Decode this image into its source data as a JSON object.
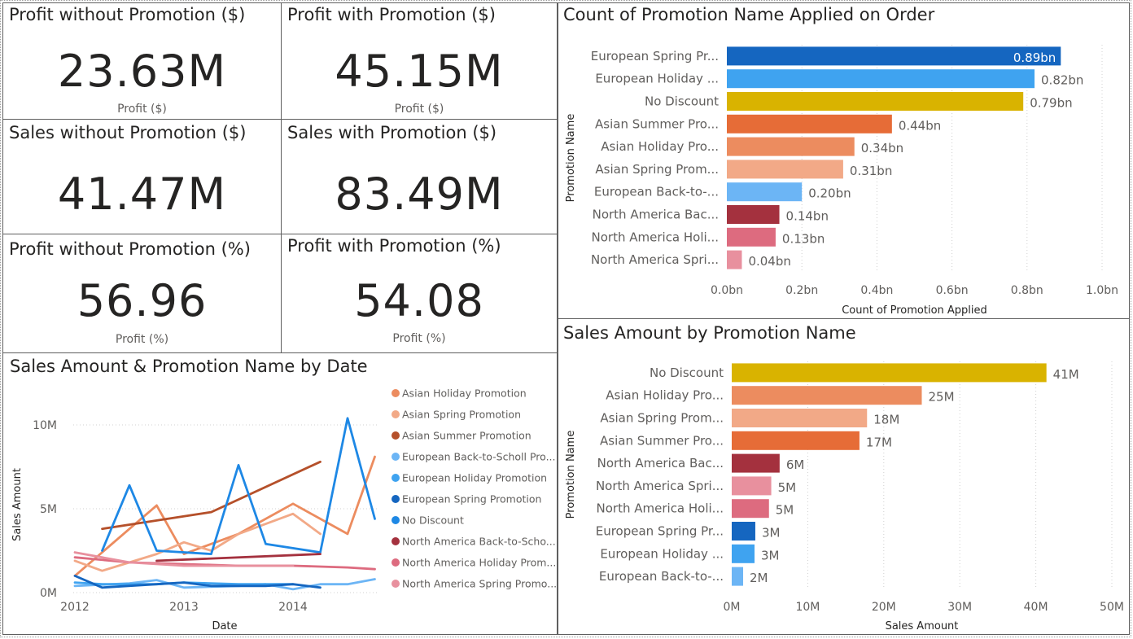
{
  "kpi_cards": [
    {
      "title": "Profit without Promotion ($)",
      "value": "23.63M",
      "category": "Profit ($)"
    },
    {
      "title": "Profit with Promotion ($)",
      "value": "45.15M",
      "category": "Profit ($)"
    },
    {
      "title": "Sales without Promotion ($)",
      "value": "41.47M",
      "category": ""
    },
    {
      "title": "Sales with Promotion ($)",
      "value": "83.49M",
      "category": ""
    },
    {
      "title": "Profit without Promotion (%)",
      "value": "56.96",
      "category": "Profit (%)"
    },
    {
      "title": "Profit with Promotion (%)",
      "value": "54.08",
      "category": "Profit (%)"
    }
  ],
  "colors": {
    "European Spring Promotion": "#1566c0",
    "European Holiday Promotion": "#3fa3f0",
    "No Discount": "#d9b300",
    "Asian Summer Promotion": "#e66c37",
    "Asian Holiday Promotion": "#ec8c5f",
    "Asian Spring Promotion": "#f2a987",
    "European Back-to-Scholl Promotion": "#6cb5f5",
    "North America Back-to-School Promotion": "#a4313e",
    "North America Holiday Promotion": "#dd6b7f",
    "North America Spring Promotion": "#e8909e",
    "line_no_discount": "#1e88e5",
    "line_asian_summer": "#b5502a"
  },
  "chart_data": [
    {
      "type": "bar",
      "orientation": "horizontal",
      "title": "Count of Promotion Name Applied on Order",
      "xlabel": "Count of Promotion Applied",
      "ylabel": "Promotion Name",
      "xlim": [
        0,
        1.0
      ],
      "x_ticks": [
        "0.0bn",
        "0.2bn",
        "0.4bn",
        "0.6bn",
        "0.8bn",
        "1.0bn"
      ],
      "categories": [
        "European Spring Pr...",
        "European Holiday ...",
        "No Discount",
        "Asian Summer Pro...",
        "Asian Holiday Pro...",
        "Asian Spring Prom...",
        "European Back-to-...",
        "North America Bac...",
        "North America Holi...",
        "North America Spri..."
      ],
      "series_keys": [
        "European Spring Promotion",
        "European Holiday Promotion",
        "No Discount",
        "Asian Summer Promotion",
        "Asian Holiday Promotion",
        "Asian Spring Promotion",
        "European Back-to-Scholl Promotion",
        "North America Back-to-School Promotion",
        "North America Holiday Promotion",
        "North America Spring Promotion"
      ],
      "values": [
        0.89,
        0.82,
        0.79,
        0.44,
        0.34,
        0.31,
        0.2,
        0.14,
        0.13,
        0.04
      ],
      "labels": [
        "0.89bn",
        "0.82bn",
        "0.79bn",
        "0.44bn",
        "0.34bn",
        "0.31bn",
        "0.20bn",
        "0.14bn",
        "0.13bn",
        "0.04bn"
      ],
      "grid": true
    },
    {
      "type": "bar",
      "orientation": "horizontal",
      "title": "Sales Amount by Promotion Name",
      "xlabel": "Sales Amount",
      "ylabel": "Promotion Name",
      "xlim": [
        0,
        50
      ],
      "x_ticks": [
        "0M",
        "10M",
        "20M",
        "30M",
        "40M",
        "50M"
      ],
      "categories": [
        "No Discount",
        "Asian Holiday Pro...",
        "Asian Spring Prom...",
        "Asian Summer Pro...",
        "North America Bac...",
        "North America Spri...",
        "North America Holi...",
        "European Spring Pr...",
        "European Holiday ...",
        "European Back-to-..."
      ],
      "series_keys": [
        "No Discount",
        "Asian Holiday Promotion",
        "Asian Spring Promotion",
        "Asian Summer Promotion",
        "North America Back-to-School Promotion",
        "North America Spring Promotion",
        "North America Holiday Promotion",
        "European Spring Promotion",
        "European Holiday Promotion",
        "European Back-to-Scholl Promotion"
      ],
      "values": [
        41.4,
        25.0,
        17.8,
        16.8,
        6.3,
        5.2,
        4.9,
        3.1,
        3.0,
        1.5
      ],
      "labels": [
        "41M",
        "25M",
        "18M",
        "17M",
        "6M",
        "5M",
        "5M",
        "3M",
        "3M",
        "2M"
      ],
      "grid": true
    },
    {
      "type": "line",
      "title": "Sales Amount & Promotion Name by Date",
      "xlabel": "Date",
      "ylabel": "Sales Amount",
      "x_ticks": [
        "2012",
        "2013",
        "2014"
      ],
      "xlim": [
        2012.0,
        2014.75
      ],
      "y_ticks": [
        "0M",
        "5M",
        "10M"
      ],
      "ylim": [
        0,
        12
      ],
      "legend_position": "right",
      "legend": [
        "Asian Holiday Promotion",
        "Asian Spring Promotion",
        "Asian Summer Promotion",
        "European Back-to-Scholl Pro...",
        "European Holiday Promotion",
        "European Spring Promotion",
        "No Discount",
        "North America Back-to-Scho...",
        "North America Holiday Prom...",
        "North America Spring Promo..."
      ],
      "series": [
        {
          "name": "Asian Holiday Promotion",
          "color": "#ec8c5f",
          "x": [
            2012.0,
            2012.75,
            2013.0,
            2013.5,
            2014.0,
            2014.5,
            2014.75
          ],
          "y": [
            1.0,
            5.2,
            2.3,
            3.5,
            5.3,
            3.5,
            8.1
          ]
        },
        {
          "name": "Asian Spring Promotion",
          "color": "#f2a987",
          "x": [
            2012.0,
            2012.25,
            2012.75,
            2013.0,
            2013.25,
            2013.5,
            2014.0,
            2014.25
          ],
          "y": [
            1.9,
            1.3,
            2.3,
            3.0,
            2.5,
            3.5,
            4.7,
            3.5
          ]
        },
        {
          "name": "Asian Summer Promotion",
          "color": "#b5502a",
          "x": [
            2012.25,
            2013.25,
            2014.25
          ],
          "y": [
            3.8,
            4.8,
            7.8
          ]
        },
        {
          "name": "European Back-to-Scholl Promotion",
          "color": "#6cb5f5",
          "x": [
            2012.0,
            2012.5,
            2012.75,
            2013.0,
            2013.5,
            2013.75,
            2014.0,
            2014.25,
            2014.5,
            2014.75
          ],
          "y": [
            0.4,
            0.55,
            0.75,
            0.3,
            0.4,
            0.5,
            0.2,
            0.5,
            0.5,
            0.8
          ]
        },
        {
          "name": "European Holiday Promotion",
          "color": "#3fa3f0",
          "x": [
            2012.0,
            2012.25,
            2012.75,
            2013.0,
            2013.5,
            2014.0
          ],
          "y": [
            0.6,
            0.5,
            0.5,
            0.6,
            0.5,
            0.5
          ]
        },
        {
          "name": "European Spring Promotion",
          "color": "#1566c0",
          "x": [
            2012.0,
            2012.25,
            2012.75,
            2013.0,
            2013.25,
            2013.75,
            2014.0,
            2014.25
          ],
          "y": [
            1.0,
            0.3,
            0.5,
            0.6,
            0.4,
            0.4,
            0.5,
            0.3
          ]
        },
        {
          "name": "No Discount",
          "color": "#1e88e5",
          "x": [
            2012.25,
            2012.5,
            2012.75,
            2013.25,
            2013.5,
            2013.75,
            2014.25,
            2014.5,
            2014.75
          ],
          "y": [
            2.5,
            6.4,
            2.5,
            2.3,
            7.6,
            2.9,
            2.4,
            10.4,
            4.4
          ]
        },
        {
          "name": "North America Back-to-School Promotion",
          "color": "#a4313e",
          "x": [
            2012.75,
            2014.25
          ],
          "y": [
            1.9,
            2.3
          ]
        },
        {
          "name": "North America Holiday Promotion",
          "color": "#dd6b7f",
          "x": [
            2012.0,
            2012.5,
            2013.0,
            2013.5,
            2014.0,
            2014.5,
            2014.75
          ],
          "y": [
            2.1,
            1.8,
            1.7,
            1.6,
            1.6,
            1.5,
            1.4
          ]
        },
        {
          "name": "North America Spring Promotion",
          "color": "#e8909e",
          "x": [
            2012.0,
            2012.5,
            2013.0,
            2013.5,
            2014.0
          ],
          "y": [
            2.4,
            1.8,
            1.6,
            1.6,
            1.6
          ]
        }
      ]
    }
  ]
}
